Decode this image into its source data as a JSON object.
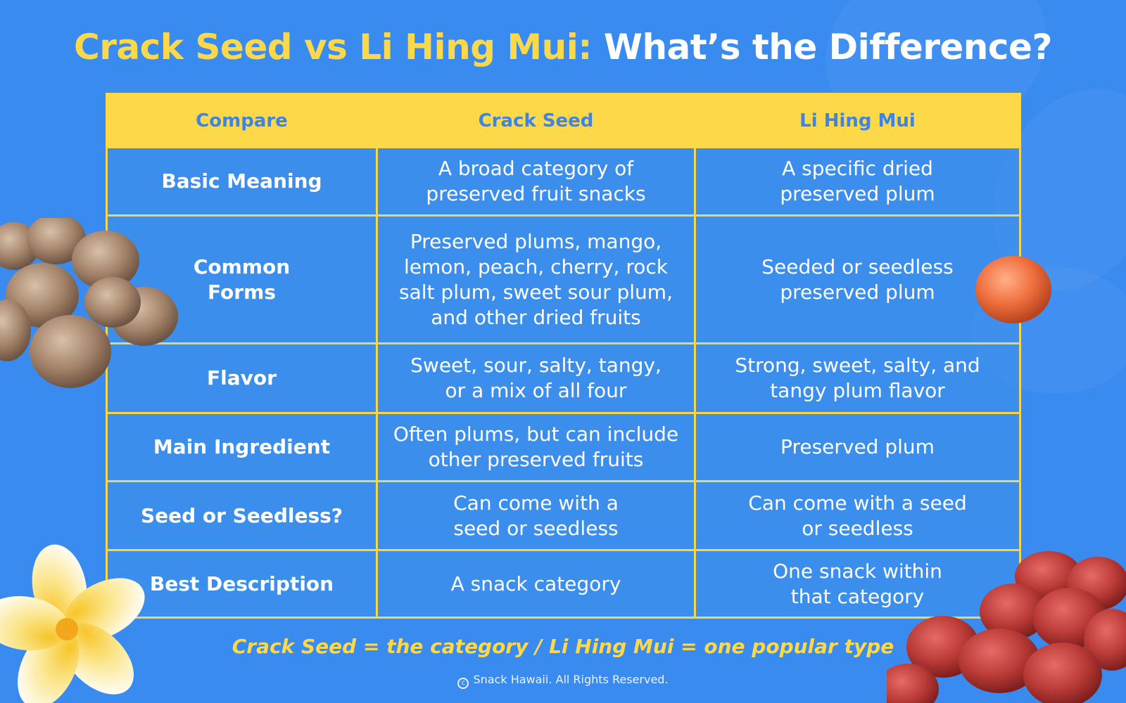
{
  "title": {
    "part1": "Crack Seed vs Li Hing Mui:",
    "part2": "What’s the Difference?"
  },
  "table": {
    "headers": [
      "Compare",
      "Crack Seed",
      "Li Hing Mui"
    ],
    "rows": [
      {
        "label": "Basic Meaning",
        "crack_seed": "A broad category of\npreserved fruit snacks",
        "li_hing_mui": "A specific dried\npreserved plum"
      },
      {
        "label": "Common\nForms",
        "crack_seed": "Preserved plums, mango,\nlemon, peach, cherry, rock\nsalt plum, sweet sour plum,\nand other dried fruits",
        "li_hing_mui": "Seeded or seedless\npreserved plum"
      },
      {
        "label": "Flavor",
        "crack_seed": "Sweet, sour, salty, tangy,\nor a mix of all four",
        "li_hing_mui": "Strong, sweet, salty, and\ntangy plum flavor"
      },
      {
        "label": "Main Ingredient",
        "crack_seed": "Often plums, but can include\nother preserved fruits",
        "li_hing_mui": "Preserved plum"
      },
      {
        "label": "Seed or Seedless?",
        "crack_seed": "Can come with a\nseed or seedless",
        "li_hing_mui": "Can come with a seed\nor seedless"
      },
      {
        "label": "Best Description",
        "crack_seed": "A snack category",
        "li_hing_mui": "One snack within\nthat category"
      }
    ]
  },
  "summary": "Crack Seed = the category / Li Hing Mui = one popular type",
  "footer": "Snack Hawaii. All Rights Reserved.",
  "colors": {
    "background": "#3a8bf0",
    "accent_yellow": "#fdd94a",
    "header_text": "#3d84e4"
  },
  "decorations": [
    "crack-seed-cluster",
    "li-hing-mui-plum",
    "plumeria-flower",
    "red-crack-seed-pile"
  ]
}
